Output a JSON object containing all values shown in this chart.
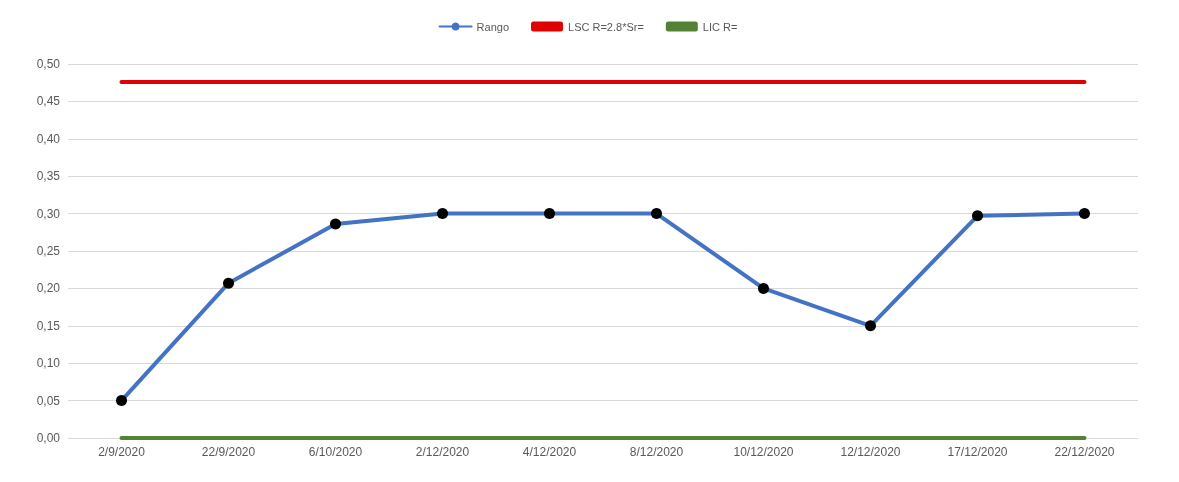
{
  "chart_data": {
    "type": "line",
    "categories": [
      "2/9/2020",
      "22/9/2020",
      "6/10/2020",
      "2/12/2020",
      "4/12/2020",
      "8/12/2020",
      "10/12/2020",
      "12/12/2020",
      "17/12/2020",
      "22/12/2020"
    ],
    "series": [
      {
        "name": "Rango",
        "color": "#4472c4",
        "marker": "circle",
        "colors": [
          "#000000",
          "#000000",
          "#000000",
          "#000000",
          "#000000",
          "#000000",
          "#000000",
          "#000000",
          "#000000",
          "#000000"
        ],
        "values": [
          0.05,
          0.207,
          0.286,
          0.3,
          0.3,
          0.3,
          0.2,
          0.15,
          0.297,
          0.3
        ]
      },
      {
        "name": "LSC R=2.8*Sr=",
        "color": "#e00000",
        "marker": "none",
        "values": [
          0.476,
          0.476,
          0.476,
          0.476,
          0.476,
          0.476,
          0.476,
          0.476,
          0.476,
          0.476
        ]
      },
      {
        "name": "LIC R=",
        "color": "#548235",
        "marker": "none",
        "values": [
          0,
          0,
          0,
          0,
          0,
          0,
          0,
          0,
          0,
          0
        ]
      }
    ],
    "ylim": [
      0,
      0.5
    ],
    "yticks": [
      {
        "value": 0,
        "label": "0,00"
      },
      {
        "value": 0.05,
        "label": "0,05"
      },
      {
        "value": 0.1,
        "label": "0,10"
      },
      {
        "value": 0.15,
        "label": "0,15"
      },
      {
        "value": 0.2,
        "label": "0,20"
      },
      {
        "value": 0.25,
        "label": "0,25"
      },
      {
        "value": 0.3,
        "label": "0,30"
      },
      {
        "value": 0.35,
        "label": "0,35"
      },
      {
        "value": 0.4,
        "label": "0,40"
      },
      {
        "value": 0.45,
        "label": "0,45"
      },
      {
        "value": 0.5,
        "label": "0,50"
      }
    ],
    "grid": "y",
    "legend": "top",
    "line_style": "solid"
  }
}
